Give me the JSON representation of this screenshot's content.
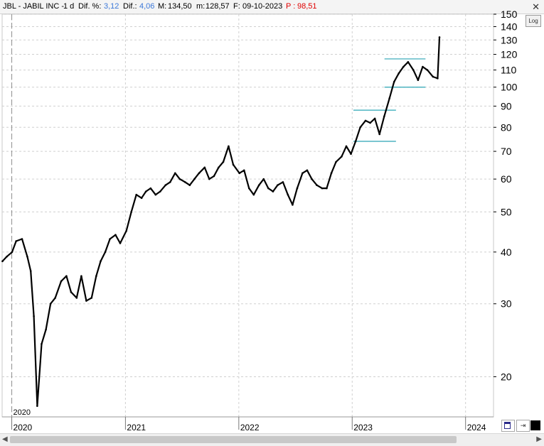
{
  "header": {
    "symbol": "JBL - JABIL INC -",
    "interval": "1 d",
    "dif_pct_label": "Dif. %:",
    "dif_pct_value": "3,12",
    "dif_label": "Dif.:",
    "dif_value": "4,06",
    "max_label": "M:",
    "max_value": "134,50",
    "min_label": "m:",
    "min_value": "128,57",
    "date_label": "F:",
    "date_value": "09-10-2023",
    "price_label": "P :",
    "price_value": "98,51",
    "close_symbol": "✕"
  },
  "controls": {
    "log_label": "Log",
    "pin_symbol": "⇥",
    "scroll_left": "◀",
    "scroll_right": "▶"
  },
  "colors": {
    "value_blue": "#3c78d8",
    "price_red": "#e00000",
    "grid": "#d0d0d0",
    "support_lines": "#2aa5b5",
    "price": "#000000"
  },
  "chart_data": {
    "type": "line",
    "title": "JBL - JABIL INC -",
    "scale": "log",
    "ylim": [
      16,
      150
    ],
    "xlim": [
      "2019-12-01",
      "2024-03-31"
    ],
    "grid": true,
    "start_marker": "2020",
    "x_ticks": [
      "2020",
      "2021",
      "2022",
      "2023",
      "2024"
    ],
    "y_ticks": [
      20,
      30,
      40,
      50,
      60,
      70,
      80,
      90,
      100,
      110,
      120,
      130,
      140,
      150
    ],
    "series": [
      {
        "x": [
          "2019-12-02",
          "2019-12-16",
          "2020-01-02",
          "2020-01-15",
          "2020-02-03",
          "2020-02-20",
          "2020-03-02",
          "2020-03-12",
          "2020-03-23",
          "2020-04-06",
          "2020-04-20",
          "2020-05-05",
          "2020-05-20",
          "2020-06-08",
          "2020-06-25",
          "2020-07-10",
          "2020-07-28",
          "2020-08-12",
          "2020-08-28",
          "2020-09-14",
          "2020-09-29",
          "2020-10-13",
          "2020-10-28",
          "2020-11-12",
          "2020-11-30",
          "2020-12-15",
          "2021-01-04",
          "2021-01-20",
          "2021-02-05",
          "2021-02-22",
          "2021-03-08",
          "2021-03-23",
          "2021-04-08",
          "2021-04-23",
          "2021-05-10",
          "2021-05-25",
          "2021-06-10",
          "2021-06-25",
          "2021-07-12",
          "2021-07-27",
          "2021-08-11",
          "2021-08-26",
          "2021-09-13",
          "2021-09-28",
          "2021-10-13",
          "2021-10-28",
          "2021-11-12",
          "2021-11-29",
          "2021-12-14",
          "2022-01-03",
          "2022-01-18",
          "2022-02-03",
          "2022-02-18",
          "2022-03-07",
          "2022-03-22",
          "2022-04-06",
          "2022-04-21",
          "2022-05-06",
          "2022-05-23",
          "2022-06-08",
          "2022-06-23",
          "2022-07-08",
          "2022-07-25",
          "2022-08-09",
          "2022-08-24",
          "2022-09-09",
          "2022-09-26",
          "2022-10-11",
          "2022-10-26",
          "2022-11-10",
          "2022-11-28",
          "2022-12-13",
          "2022-12-28",
          "2023-01-12",
          "2023-01-27",
          "2023-02-13",
          "2023-02-28",
          "2023-03-15",
          "2023-03-30",
          "2023-04-14",
          "2023-05-01",
          "2023-05-16",
          "2023-05-31",
          "2023-06-15",
          "2023-06-30",
          "2023-07-17",
          "2023-08-01",
          "2023-08-16",
          "2023-08-31",
          "2023-09-18",
          "2023-10-03",
          "2023-10-09"
        ],
        "y": [
          38.0,
          39.0,
          40.0,
          42.5,
          43.0,
          39.0,
          36.0,
          28.0,
          17.0,
          24.0,
          26.0,
          30.0,
          31.0,
          34.0,
          35.0,
          32.0,
          31.0,
          35.0,
          30.5,
          31.0,
          35.0,
          38.0,
          40.0,
          43.0,
          44.0,
          42.0,
          45.0,
          50.0,
          55.0,
          54.0,
          56.0,
          57.0,
          55.0,
          56.0,
          58.0,
          59.0,
          62.0,
          60.0,
          59.0,
          58.0,
          60.0,
          62.0,
          64.0,
          60.0,
          61.0,
          64.0,
          66.0,
          72.0,
          65.0,
          62.0,
          63.0,
          57.0,
          55.0,
          58.0,
          60.0,
          57.0,
          56.0,
          58.0,
          59.0,
          55.0,
          52.0,
          57.0,
          62.0,
          63.0,
          60.0,
          58.0,
          57.0,
          57.0,
          62.0,
          66.0,
          68.0,
          72.0,
          69.0,
          74.0,
          80.0,
          83.0,
          82.0,
          84.0,
          77.0,
          85.0,
          94.0,
          103.0,
          108.0,
          112.0,
          115.0,
          110.0,
          104.0,
          112.0,
          110.0,
          106.0,
          105.0,
          132.0
        ]
      }
    ],
    "support_lines": [
      {
        "from": "2023-01-05",
        "to": "2023-05-22",
        "y": 88
      },
      {
        "from": "2023-01-05",
        "to": "2023-05-22",
        "y": 74
      },
      {
        "from": "2023-04-15",
        "to": "2023-08-25",
        "y": 117
      },
      {
        "from": "2023-04-15",
        "to": "2023-08-25",
        "y": 100
      }
    ]
  }
}
